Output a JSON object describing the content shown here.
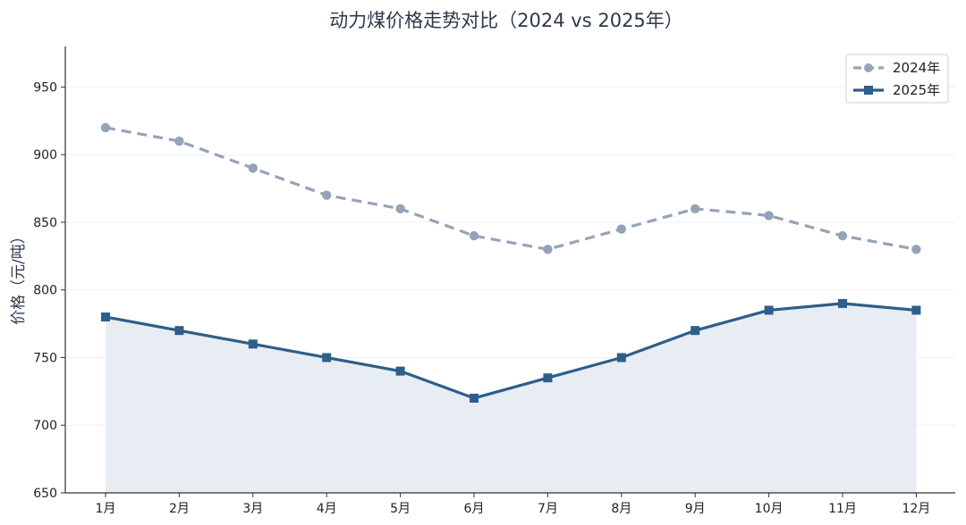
{
  "chart_data": {
    "type": "line",
    "title": "动力煤价格走势对比（2024 vs 2025年）",
    "xlabel": "",
    "ylabel": "价格（元/吨）",
    "categories": [
      "1月",
      "2月",
      "3月",
      "4月",
      "5月",
      "6月",
      "7月",
      "8月",
      "9月",
      "10月",
      "11月",
      "12月"
    ],
    "yticks": [
      650,
      700,
      750,
      800,
      850,
      900,
      950
    ],
    "ylim": [
      650,
      980
    ],
    "grid": true,
    "legend_position": "top-right",
    "series": [
      {
        "name": "2024年",
        "values": [
          920,
          910,
          890,
          870,
          860,
          840,
          830,
          845,
          860,
          855,
          840,
          830
        ],
        "color": "#95a3b8",
        "style": "dashed",
        "marker": "circle"
      },
      {
        "name": "2025年",
        "values": [
          780,
          770,
          760,
          750,
          740,
          720,
          735,
          750,
          770,
          785,
          790,
          785
        ],
        "color": "#2e5e8a",
        "style": "solid",
        "marker": "square",
        "fill": "#e8edf4"
      }
    ]
  }
}
